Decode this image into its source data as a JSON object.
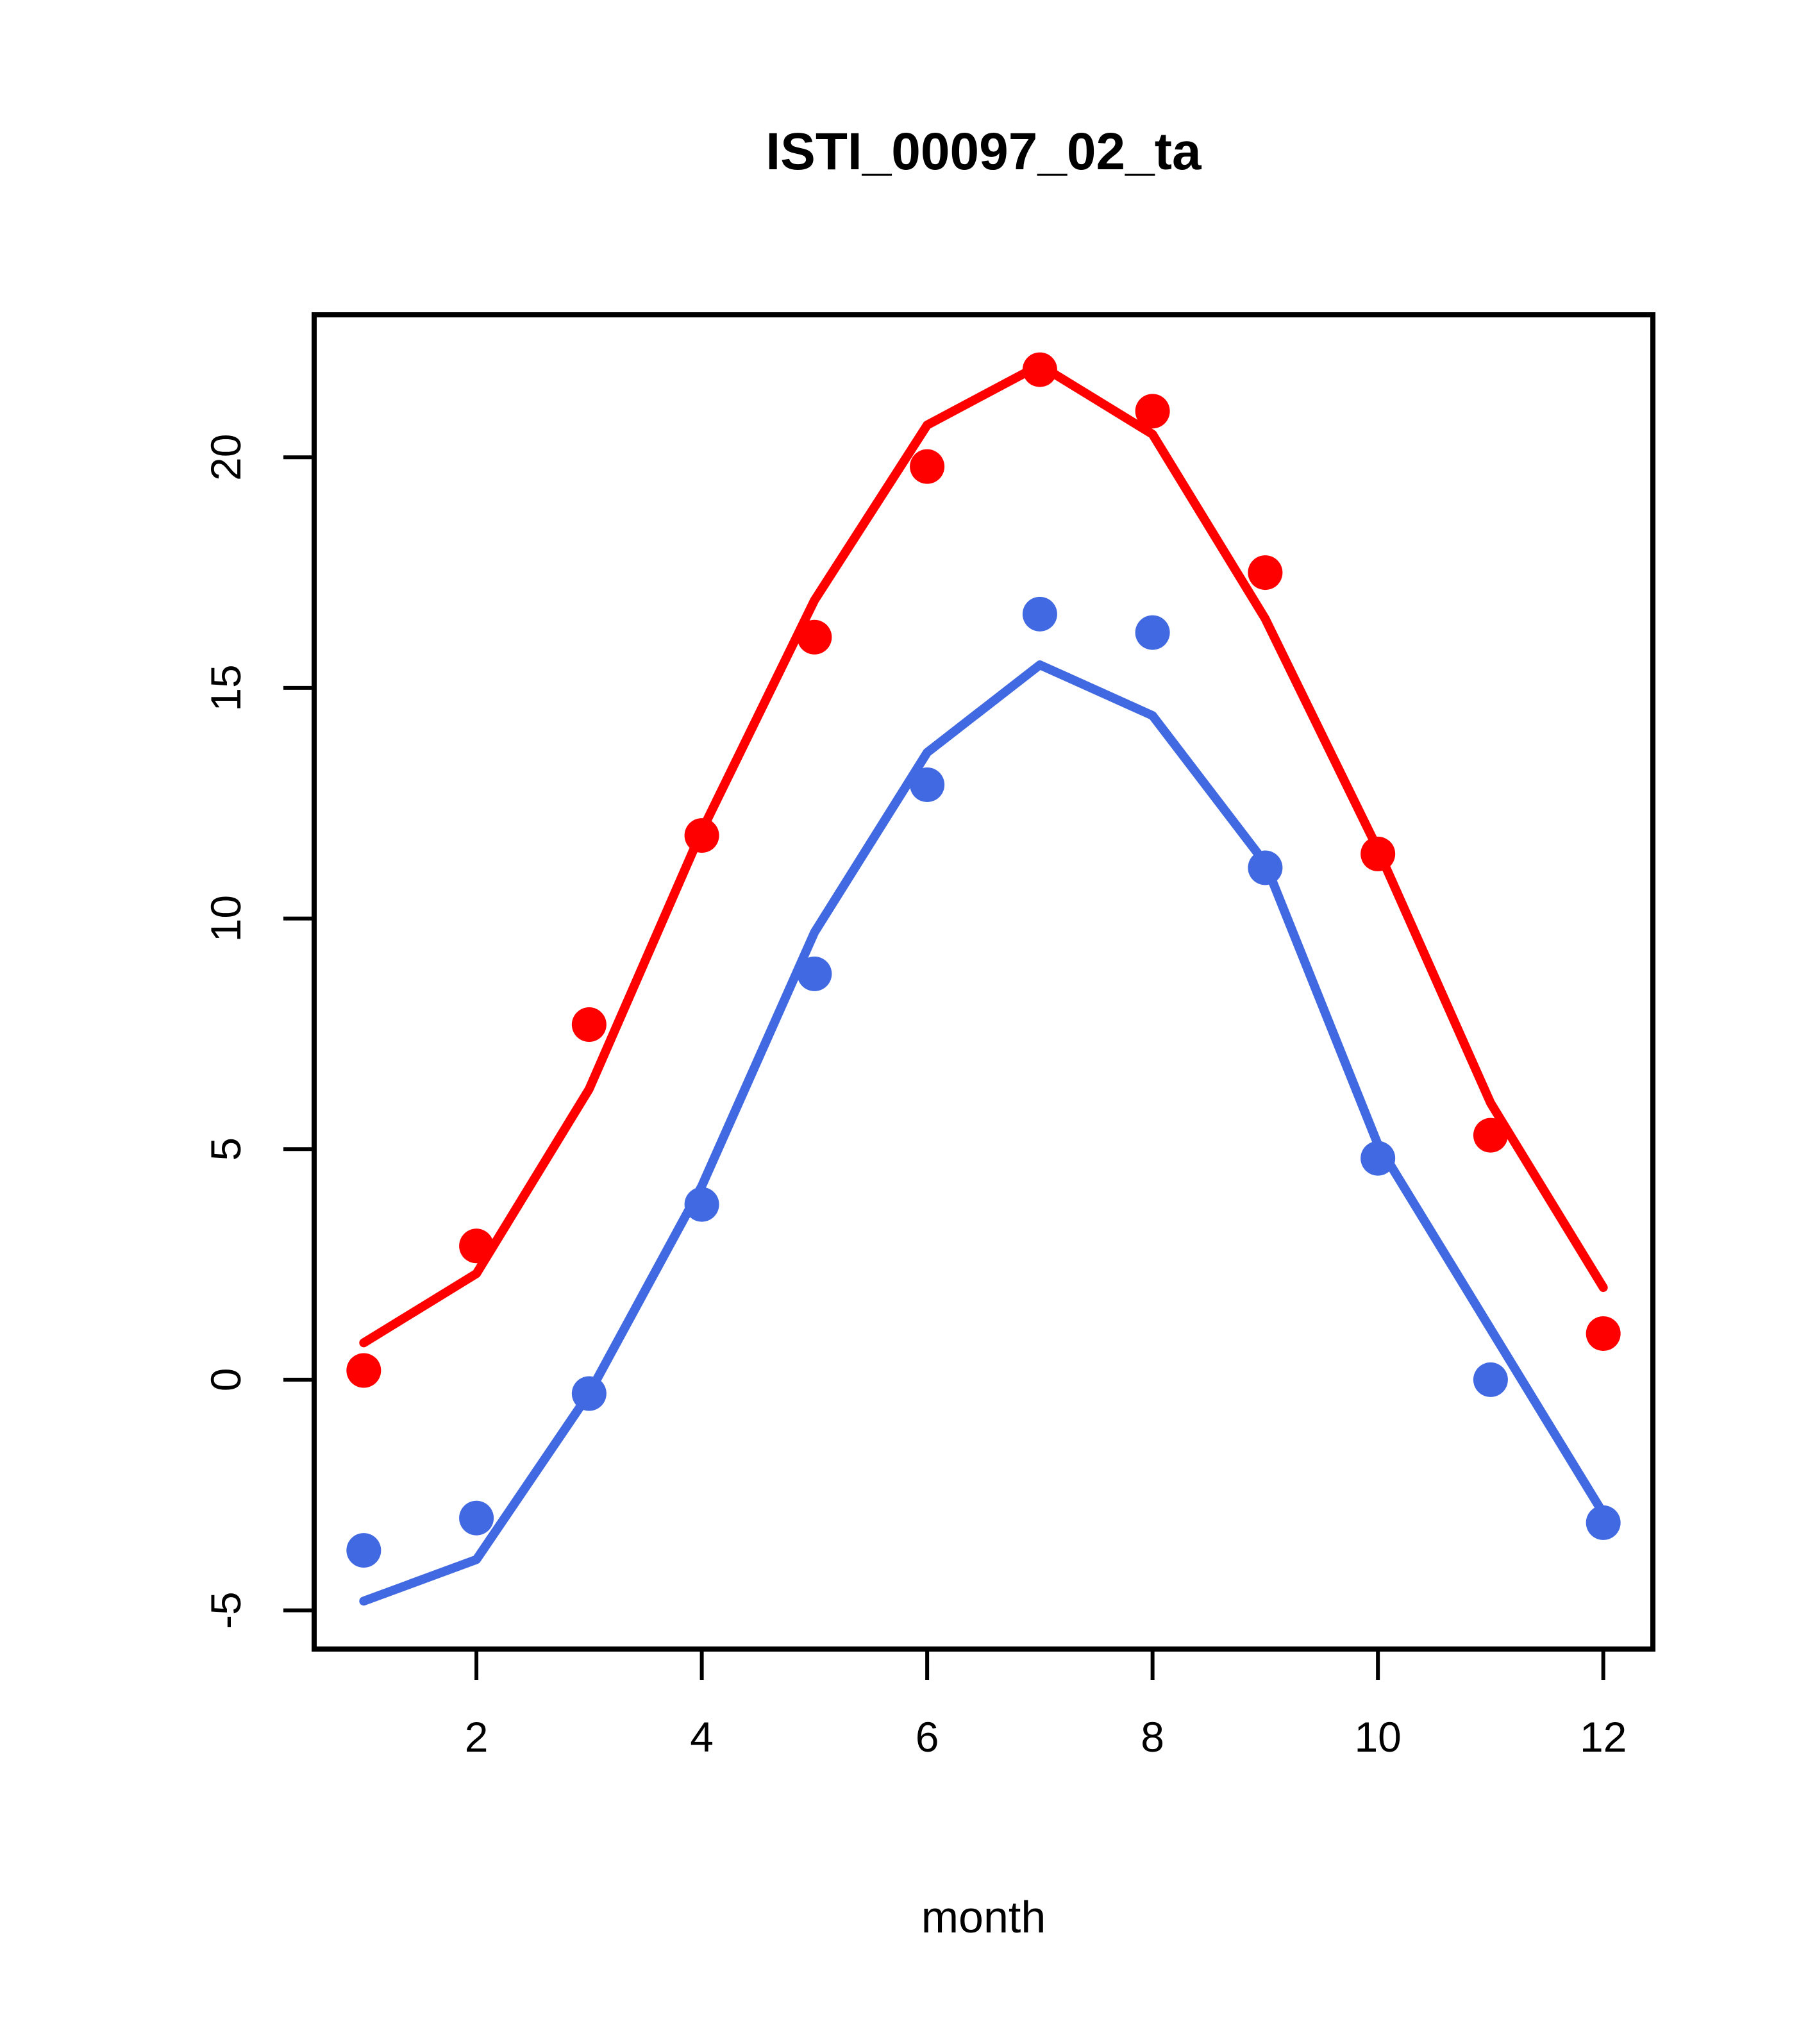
{
  "chart_data": {
    "type": "line",
    "title": "ISTI_00097_02_ta",
    "xlabel": "month",
    "ylabel": "",
    "x": [
      1,
      2,
      3,
      4,
      5,
      6,
      7,
      8,
      9,
      10,
      11,
      12
    ],
    "xlim": [
      0.56,
      12.44
    ],
    "ylim": [
      -5.84,
      23.09
    ],
    "xticks": [
      2,
      4,
      6,
      8,
      10,
      12
    ],
    "xtick_labels": [
      "2",
      "4",
      "6",
      "8",
      "10",
      "12"
    ],
    "yticks": [
      -5,
      0,
      5,
      10,
      15,
      20
    ],
    "ytick_labels": [
      "-5",
      "0",
      "5",
      "10",
      "15",
      "20"
    ],
    "grid": false,
    "legend_position": "none",
    "colors": {
      "red": "#FF0000",
      "blue": "#4169E1",
      "axis": "#000000"
    },
    "series": [
      {
        "name": "red-line",
        "kind": "line",
        "color": "#FF0000",
        "values": [
          0.8,
          2.3,
          6.3,
          11.9,
          16.9,
          20.7,
          22.0,
          20.5,
          16.5,
          11.5,
          6.0,
          2.0
        ]
      },
      {
        "name": "blue-line",
        "kind": "line",
        "color": "#4169E1",
        "values": [
          -4.8,
          -3.9,
          -0.3,
          4.2,
          9.7,
          13.6,
          15.5,
          14.4,
          11.2,
          5.1,
          1.1,
          -2.9
        ]
      },
      {
        "name": "red-points",
        "kind": "scatter",
        "color": "#FF0000",
        "values": [
          0.2,
          2.9,
          7.7,
          11.8,
          16.1,
          19.8,
          21.9,
          21.0,
          17.5,
          11.4,
          5.3,
          1.0
        ]
      },
      {
        "name": "blue-points",
        "kind": "scatter",
        "color": "#4169E1",
        "values": [
          -3.7,
          -3.0,
          -0.3,
          3.8,
          8.8,
          12.9,
          16.6,
          16.2,
          11.1,
          4.8,
          0.0,
          -3.1
        ]
      }
    ]
  }
}
